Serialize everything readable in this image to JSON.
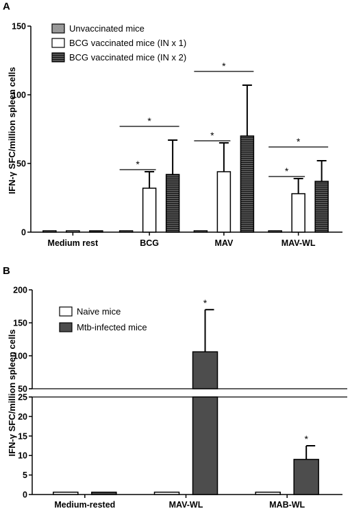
{
  "chart_data": [
    {
      "type": "bar",
      "panel_label": "A",
      "ylabel": "IFN-γ SFC/million spleen cells",
      "ylim": [
        0,
        150
      ],
      "yticks": [
        0,
        50,
        100,
        150
      ],
      "categories": [
        "Medium rest",
        "BCG",
        "MAV",
        "MAV-WL"
      ],
      "series": [
        {
          "name": "Unvaccinated mice",
          "fill": "checker",
          "values": [
            1,
            1,
            1,
            1
          ],
          "errors": [
            0,
            0,
            0,
            0
          ]
        },
        {
          "name": "BCG vaccinated mice (IN x 1)",
          "fill": "white",
          "values": [
            1,
            32,
            44,
            28
          ],
          "errors": [
            0,
            12,
            21,
            11
          ]
        },
        {
          "name": "BCG vaccinated mice (IN x 2)",
          "fill": "stripes",
          "values": [
            1,
            42,
            70,
            37
          ],
          "errors": [
            0,
            25,
            37,
            15
          ]
        }
      ],
      "significance": [
        {
          "category": "BCG",
          "from": 0,
          "to": 1,
          "level": 0,
          "label": "*"
        },
        {
          "category": "BCG",
          "from": 0,
          "to": 2,
          "level": 1,
          "label": "*"
        },
        {
          "category": "MAV",
          "from": 0,
          "to": 1,
          "level": 0,
          "label": "*"
        },
        {
          "category": "MAV",
          "from": 0,
          "to": 2,
          "level": 1,
          "label": "*"
        },
        {
          "category": "MAV-WL",
          "from": 0,
          "to": 1,
          "level": 0,
          "label": "*"
        },
        {
          "category": "MAV-WL",
          "from": 0,
          "to": 2,
          "level": 1,
          "label": "*"
        }
      ]
    },
    {
      "type": "bar",
      "panel_label": "B",
      "ylabel": "IFN-γ SFC/million spleen cells",
      "axis_break": {
        "lower": [
          0,
          25
        ],
        "upper": [
          50,
          200
        ]
      },
      "yticks_lower": [
        0,
        5,
        10,
        15,
        20,
        25
      ],
      "yticks_upper": [
        50,
        100,
        150,
        200
      ],
      "categories": [
        "Medium-rested",
        "MAV-WL",
        "MAB-WL"
      ],
      "series": [
        {
          "name": "Naive mice",
          "color": "#ffffff",
          "values": [
            0.6,
            0.6,
            0.6
          ],
          "errors": [
            0,
            0,
            0
          ]
        },
        {
          "name": "Mtb-infected mice",
          "color": "#4d4d4d",
          "values": [
            0.6,
            106,
            9
          ],
          "errors": [
            0,
            64,
            3.5
          ]
        }
      ],
      "annotations": [
        {
          "category": "MAV-WL",
          "series": 1,
          "label": "*"
        },
        {
          "category": "MAB-WL",
          "series": 1,
          "label": "*"
        }
      ]
    }
  ]
}
